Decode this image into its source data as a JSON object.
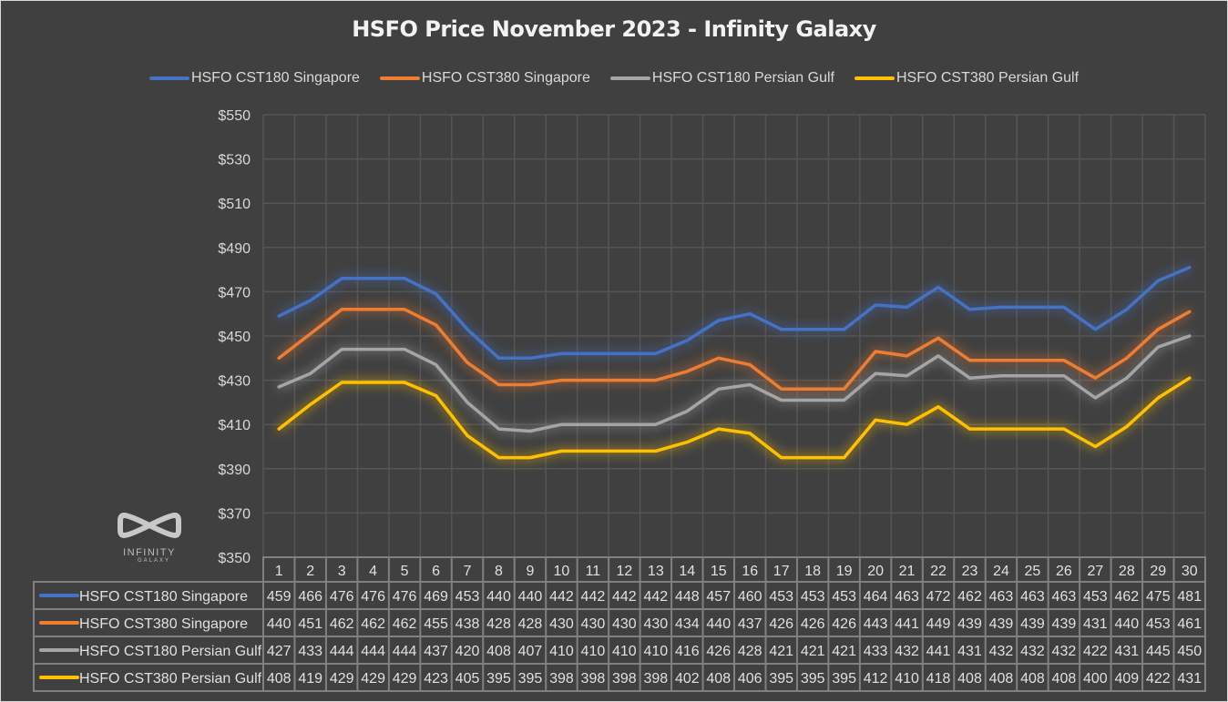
{
  "chart_data": {
    "type": "line",
    "title": "HSFO Price November 2023 - Infinity Galaxy",
    "xlabel": "",
    "ylabel": "",
    "ylim": [
      350,
      550
    ],
    "yticks": [
      "$550",
      "$530",
      "$510",
      "$490",
      "$470",
      "$450",
      "$430",
      "$410",
      "$390",
      "$370",
      "$350"
    ],
    "ytick_values": [
      550,
      530,
      510,
      490,
      470,
      450,
      430,
      410,
      390,
      370,
      350
    ],
    "grid": true,
    "legend_position": "top",
    "categories": [
      "1",
      "2",
      "3",
      "4",
      "5",
      "6",
      "7",
      "8",
      "9",
      "10",
      "11",
      "12",
      "13",
      "14",
      "15",
      "16",
      "17",
      "18",
      "19",
      "20",
      "21",
      "22",
      "23",
      "24",
      "25",
      "26",
      "27",
      "28",
      "29",
      "30"
    ],
    "series": [
      {
        "name": "HSFO CST180 Singapore",
        "color": "#4472c4",
        "values": [
          459,
          466,
          476,
          476,
          476,
          469,
          453,
          440,
          440,
          442,
          442,
          442,
          442,
          448,
          457,
          460,
          453,
          453,
          453,
          464,
          463,
          472,
          462,
          463,
          463,
          463,
          453,
          462,
          475,
          481
        ]
      },
      {
        "name": "HSFO CST380 Singapore",
        "color": "#ed7d31",
        "values": [
          440,
          451,
          462,
          462,
          462,
          455,
          438,
          428,
          428,
          430,
          430,
          430,
          430,
          434,
          440,
          437,
          426,
          426,
          426,
          443,
          441,
          449,
          439,
          439,
          439,
          439,
          431,
          440,
          453,
          461
        ]
      },
      {
        "name": "HSFO CST180 Persian Gulf",
        "color": "#a5a5a5",
        "values": [
          427,
          433,
          444,
          444,
          444,
          437,
          420,
          408,
          407,
          410,
          410,
          410,
          410,
          416,
          426,
          428,
          421,
          421,
          421,
          433,
          432,
          441,
          431,
          432,
          432,
          432,
          422,
          431,
          445,
          450
        ]
      },
      {
        "name": "HSFO CST380 Persian Gulf",
        "color": "#ffc000",
        "values": [
          408,
          419,
          429,
          429,
          429,
          423,
          405,
          395,
          395,
          398,
          398,
          398,
          398,
          402,
          408,
          406,
          395,
          395,
          395,
          412,
          410,
          418,
          408,
          408,
          408,
          408,
          400,
          409,
          422,
          431
        ]
      }
    ],
    "data_table": true
  },
  "logo": {
    "line1": "INFINITY",
    "line2": "GALAXY"
  },
  "colors": {
    "background": "#404040",
    "grid": "#555555",
    "text": "#d9d9d9"
  }
}
